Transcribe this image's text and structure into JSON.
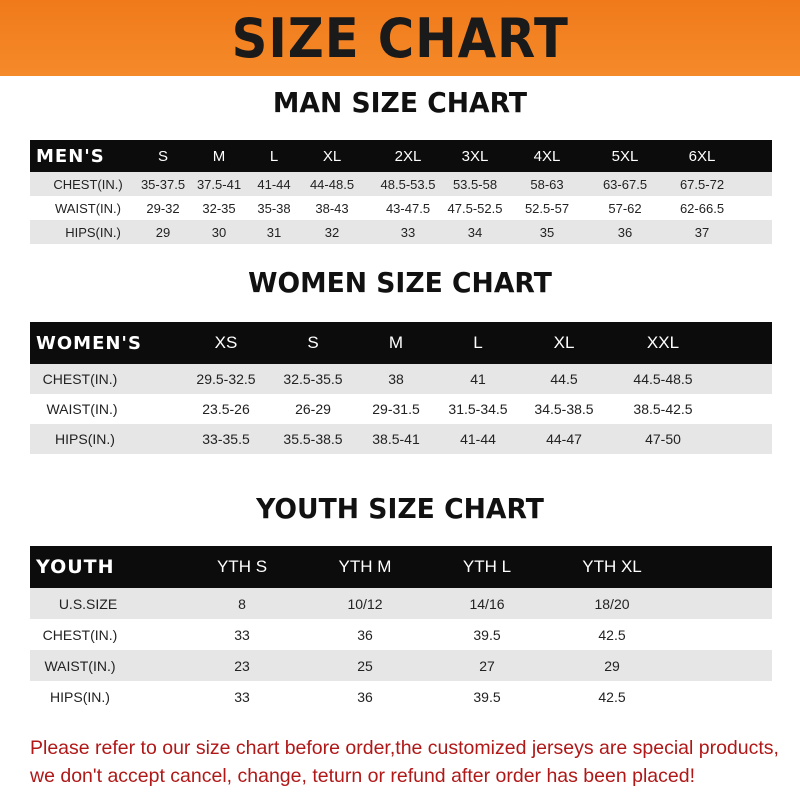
{
  "banner": {
    "title": "SIZE CHART",
    "color": "#f07a1a"
  },
  "men": {
    "title": "MAN SIZE CHART",
    "header": [
      "MEN'S",
      "S",
      "M",
      "L",
      "XL",
      "2XL",
      "3XL",
      "4XL",
      "5XL",
      "6XL"
    ],
    "rows": [
      [
        "CHEST(IN.)",
        "35-37.5",
        "37.5-41",
        "41-44",
        "44-48.5",
        "48.5-53.5",
        "53.5-58",
        "58-63",
        "63-67.5",
        "67.5-72"
      ],
      [
        "WAIST(IN.)",
        "29-32",
        "32-35",
        "35-38",
        "38-43",
        "43-47.5",
        "47.5-52.5",
        "52.5-57",
        "57-62",
        "62-66.5"
      ],
      [
        "HIPS(IN.)",
        "29",
        "30",
        "31",
        "32",
        "33",
        "34",
        "35",
        "36",
        "37"
      ]
    ]
  },
  "women": {
    "title": "WOMEN SIZE CHART",
    "header": [
      "WOMEN'S",
      "XS",
      "S",
      "M",
      "L",
      "XL",
      "XXL"
    ],
    "rows": [
      [
        "CHEST(IN.)",
        "29.5-32.5",
        "32.5-35.5",
        "38",
        "41",
        "44.5",
        "44.5-48.5"
      ],
      [
        "WAIST(IN.)",
        "23.5-26",
        "26-29",
        "29-31.5",
        "31.5-34.5",
        "34.5-38.5",
        "38.5-42.5"
      ],
      [
        "HIPS(IN.)",
        "33-35.5",
        "35.5-38.5",
        "38.5-41",
        "41-44",
        "44-47",
        "47-50"
      ]
    ]
  },
  "youth": {
    "title": "YOUTH SIZE CHART",
    "header": [
      "YOUTH",
      "YTH S",
      "YTH M",
      "YTH L",
      "YTH XL"
    ],
    "rows": [
      [
        "U.S.SIZE",
        "8",
        "10/12",
        "14/16",
        "18/20"
      ],
      [
        "CHEST(IN.)",
        "33",
        "36",
        "39.5",
        "42.5"
      ],
      [
        "WAIST(IN.)",
        "23",
        "25",
        "27",
        "29"
      ],
      [
        "HIPS(IN.)",
        "33",
        "36",
        "39.5",
        "42.5"
      ]
    ]
  },
  "notice": {
    "line1": "Please refer to our size chart before order,the customized jerseys are special products,",
    "line2": "we don't accept cancel, change, teturn or refund after order has been placed!",
    "color": "#b01818"
  }
}
